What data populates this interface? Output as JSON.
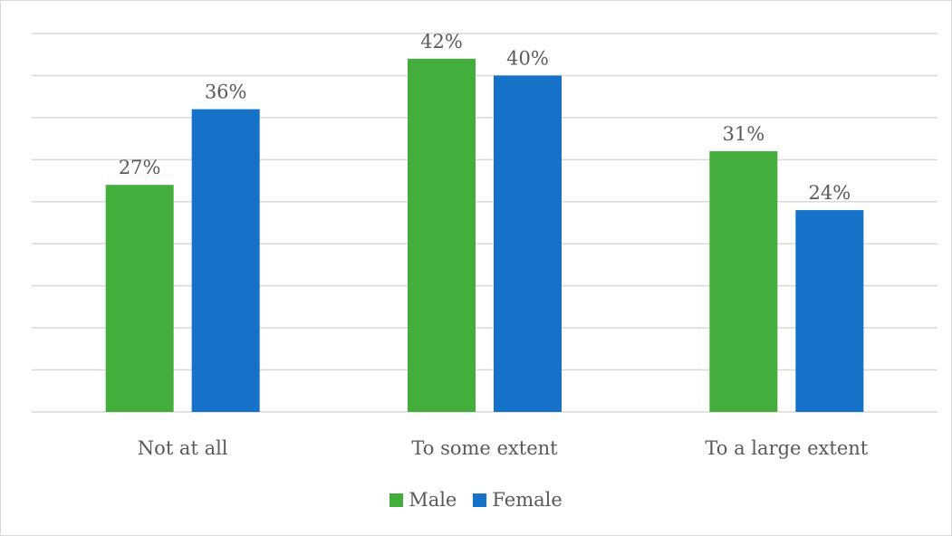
{
  "chart_data": {
    "type": "bar",
    "categories": [
      "Not at all",
      "To some extent",
      "To a large extent"
    ],
    "series": [
      {
        "name": "Male",
        "color": "#43ae3c",
        "values": [
          27,
          42,
          31
        ],
        "labels": [
          "27%",
          "42%",
          "31%"
        ]
      },
      {
        "name": "Female",
        "color": "#1572c8",
        "values": [
          36,
          40,
          24
        ],
        "labels": [
          "36%",
          "40%",
          "24%"
        ]
      }
    ],
    "ylim": [
      0,
      45
    ],
    "grid": true,
    "legend_position": "bottom"
  }
}
